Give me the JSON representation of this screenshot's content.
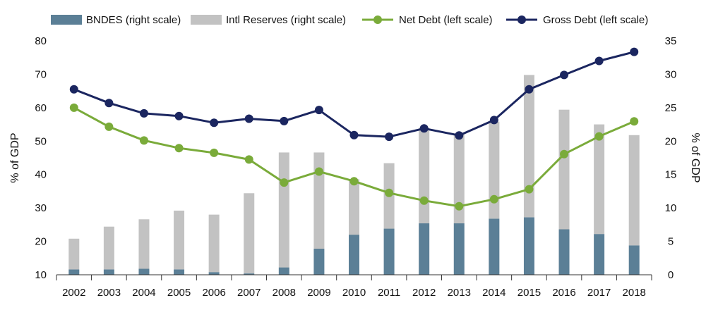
{
  "chart_data": {
    "type": "bar-line-combo",
    "categories": [
      "2002",
      "2003",
      "2004",
      "2005",
      "2006",
      "2007",
      "2008",
      "2009",
      "2010",
      "2011",
      "2012",
      "2013",
      "2014",
      "2015",
      "2016",
      "2017",
      "2018"
    ],
    "left_axis": {
      "label": "% of GDP",
      "range": [
        10,
        80
      ],
      "ticks": [
        10,
        20,
        30,
        40,
        50,
        60,
        70,
        80
      ]
    },
    "right_axis": {
      "label": "% of GDP",
      "range": [
        0,
        35
      ],
      "ticks": [
        0,
        5,
        10,
        15,
        20,
        25,
        30,
        35
      ]
    },
    "bar_series": [
      {
        "name": "BNDES (right scale)",
        "axis": "right",
        "color": "#5b7f96",
        "values": [
          0.8,
          0.8,
          0.9,
          0.8,
          0.4,
          0.2,
          1.1,
          3.9,
          6.0,
          6.9,
          7.7,
          7.7,
          8.4,
          8.6,
          6.8,
          6.1,
          4.4
        ]
      },
      {
        "name": "Intl Reserves (right scale)",
        "axis": "right",
        "color": "#c2c2c2",
        "values": [
          4.6,
          6.4,
          7.4,
          8.8,
          8.6,
          12.0,
          17.2,
          14.4,
          8.3,
          9.8,
          14.3,
          13.4,
          14.5,
          21.3,
          17.9,
          16.4,
          16.5
        ]
      }
    ],
    "line_series": [
      {
        "name": "Net Debt (left scale)",
        "axis": "left",
        "color": "#7aab3a",
        "values": [
          60.0,
          54.3,
          50.2,
          47.9,
          46.5,
          44.5,
          37.6,
          40.9,
          38.0,
          34.5,
          32.2,
          30.5,
          32.6,
          35.6,
          46.1,
          51.4,
          55.9
        ]
      },
      {
        "name": "Gross Debt (left scale)",
        "axis": "left",
        "color": "#1b2660",
        "values": [
          65.5,
          61.4,
          58.3,
          57.5,
          55.5,
          56.7,
          56.0,
          59.3,
          51.8,
          51.3,
          53.8,
          51.7,
          56.3,
          65.5,
          69.8,
          74.0,
          76.7
        ]
      }
    ],
    "legend": {
      "placement": "top"
    },
    "grid": false
  }
}
